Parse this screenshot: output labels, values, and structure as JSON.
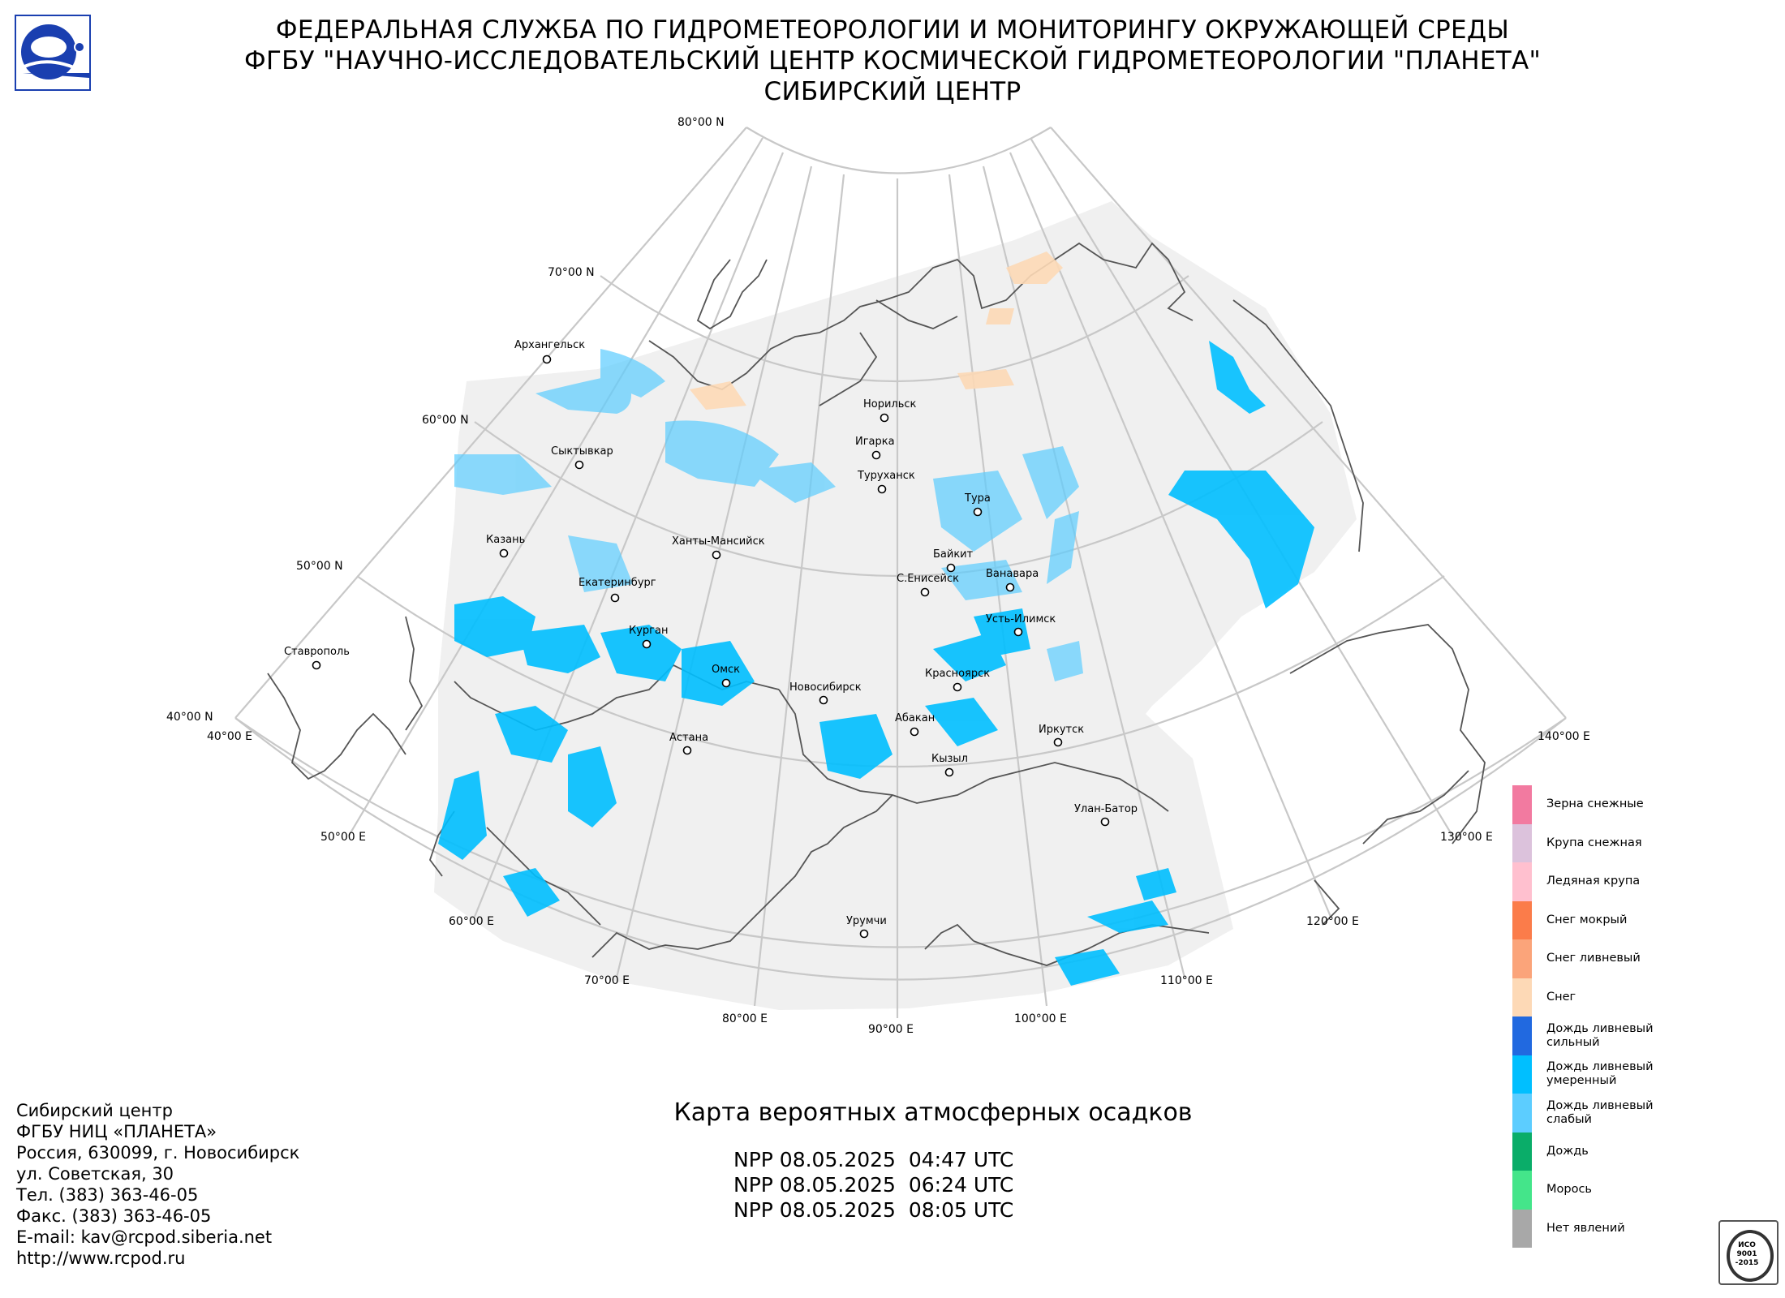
{
  "header": {
    "line1": "ФЕДЕРАЛЬНАЯ СЛУЖБА ПО ГИДРОМЕТЕОРОЛОГИИ И МОНИТОРИНГУ ОКРУЖАЮЩЕЙ СРЕДЫ",
    "line2": "ФГБУ \"НАУЧНО-ИССЛЕДОВАТЕЛЬСКИЙ ЦЕНТР КОСМИЧЕСКОЙ ГИДРОМЕТЕОРОЛОГИИ \"ПЛАНЕТА\"",
    "line3": "СИБИРСКИЙ ЦЕНТР"
  },
  "map": {
    "title": "Карта вероятных атмосферных осадков",
    "passes": [
      "NPP 08.05.2025  04:47 UTC",
      "NPP 08.05.2025  06:24 UTC",
      "NPP 08.05.2025  08:05 UTC"
    ],
    "lat_labels": [
      "80°00 N",
      "70°00 N",
      "60°00 N",
      "50°00 N",
      "40°00 N"
    ],
    "lon_labels": [
      "40°00 E",
      "50°00 E",
      "60°00 E",
      "70°00 E",
      "80°00 E",
      "90°00 E",
      "100°00 E",
      "110°00 E",
      "120°00 E",
      "130°00 E",
      "140°00 E"
    ],
    "cities": [
      "Архангельск",
      "Сыктывкар",
      "Казань",
      "Екатеринбург",
      "Ханты-Мансийск",
      "Курган",
      "Омск",
      "Астана",
      "Новосибирск",
      "Норильск",
      "Игарка",
      "Туруханск",
      "Тура",
      "Байкит",
      "Ванавара",
      "С.Енисейск",
      "Усть-Илимск",
      "Красноярск",
      "Абакан",
      "Кызыл",
      "Иркутск",
      "Улан-Батор",
      "Урумчи",
      "Ставрополь"
    ]
  },
  "legend": [
    {
      "label": "Зерна снежные",
      "color": "#f27aa0"
    },
    {
      "label": "Крупа снежная",
      "color": "#dcc2dc"
    },
    {
      "label": "Ледяная крупа",
      "color": "#ffc0cf"
    },
    {
      "label": "Снег мокрый",
      "color": "#fb7c4a"
    },
    {
      "label": "Снег ливневый",
      "color": "#fba47a"
    },
    {
      "label": "Снег",
      "color": "#fdd9b6"
    },
    {
      "label": "Дождь ливневый\nсильный",
      "color": "#2169e0"
    },
    {
      "label": "Дождь ливневый\nумеренный",
      "color": "#00bfff"
    },
    {
      "label": "Дождь ливневый\nслабый",
      "color": "#5ccdff"
    },
    {
      "label": "Дождь",
      "color": "#0aad69"
    },
    {
      "label": "Морось",
      "color": "#44e58a"
    },
    {
      "label": "Нет явлений",
      "color": "#a8a8a8"
    }
  ],
  "contacts": [
    "Сибирский центр",
    "ФГБУ НИЦ «ПЛАНЕТА»",
    "Россия, 630099, г. Новосибирск",
    "ул. Советская, 30",
    "Тел. (383) 363-46-05",
    "Факс. (383) 363-46-05",
    "E-mail: kav@rcpod.siberia.net",
    "http://www.rcpod.ru"
  ],
  "cert_badge": {
    "line1": "ИСО",
    "line2": "9001",
    "line3": "-2015"
  }
}
